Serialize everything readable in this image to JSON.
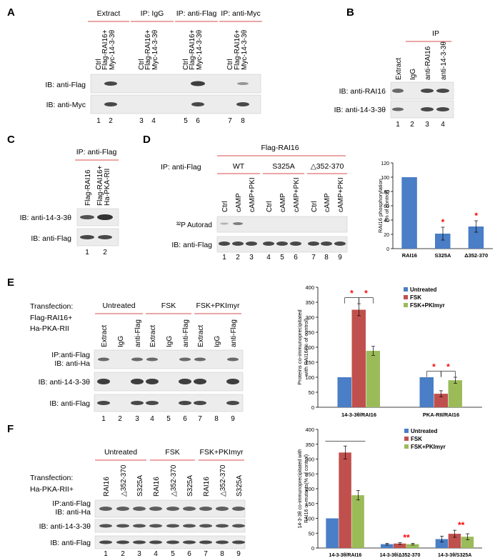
{
  "panels": {
    "A": {
      "letter": "A",
      "headers": [
        "Extract",
        "IP: IgG",
        "IP: anti-Flag",
        "IP: anti-Myc"
      ],
      "lane_labels": [
        "Ctrl",
        "Flag-RAI16+\nMyc-14-3-3θ",
        "Ctrl",
        "Flag-RAI16+\nMyc-14-3-3θ",
        "Ctrl",
        "Flag-RAI16+\nMyc-14-3-3θ",
        "Ctrl",
        "Flag-RAI16+\nMyc-14-3-3θ"
      ],
      "blots": [
        "IB: anti-Flag",
        "IB: anti-Myc"
      ],
      "lanes": [
        "1",
        "2",
        "3",
        "4",
        "5",
        "6",
        "7",
        "8"
      ]
    },
    "B": {
      "letter": "B",
      "header": "IP",
      "lane_labels": [
        "Extract",
        "IgG",
        "anti-RAI16",
        "anti-14-3-3θ"
      ],
      "blots": [
        "IB: anti-RAI16",
        "IB: anti-14-3-3θ"
      ],
      "lanes": [
        "1",
        "2",
        "3",
        "4"
      ]
    },
    "C": {
      "letter": "C",
      "header": "IP: anti-Flag",
      "lane_labels": [
        "Flag-RAI16",
        "Flag-RAI16+\nHa-PKA-RII"
      ],
      "blots": [
        "IB: anti-14-3-3θ",
        "IB: anti-Flag"
      ],
      "lanes": [
        "1",
        "2"
      ]
    },
    "D": {
      "letter": "D",
      "top_header": "Flag-RAI16",
      "ip_label": "IP: anti-Flag",
      "groups": [
        "WT",
        "S325A",
        "△352-370"
      ],
      "lane_labels": [
        "Ctrl",
        "cAMP",
        "cAMP+PKI",
        "Ctrl",
        "cAMP",
        "cAMP+PKI",
        "Ctrl",
        "cAMP",
        "cAMP+PKI"
      ],
      "blots": [
        "³²P Autorad",
        "IB: anti-Flag"
      ],
      "lanes": [
        "1",
        "2",
        "3",
        "4",
        "5",
        "6",
        "7",
        "8",
        "9"
      ]
    },
    "E": {
      "letter": "E",
      "transfection": [
        "Transfection:",
        "Flag-RAI16+",
        "Ha-PKA-RII"
      ],
      "groups": [
        "Untreated",
        "FSK",
        "FSK+PKImyr"
      ],
      "lane_labels": [
        "Extract",
        "IgG",
        "anti-Flag",
        "Extract",
        "IgG",
        "anti-Flag",
        "Extract",
        "IgG",
        "anti-Flag"
      ],
      "blots": [
        "IP:anti-Flag\nIB: anti-Ha",
        "IB: anti-14-3-3θ",
        "IB: anti-Flag"
      ],
      "lanes": [
        "1",
        "2",
        "3",
        "4",
        "5",
        "6",
        "7",
        "8",
        "9"
      ]
    },
    "F": {
      "letter": "F",
      "transfection": [
        "Transfection:",
        "Ha-PKA-RII+"
      ],
      "groups": [
        "Untreated",
        "FSK",
        "FSK+PKImyr"
      ],
      "lane_labels": [
        "RAI16",
        "△352-370",
        "S325A",
        "RAI16",
        "△352-370",
        "S325A",
        "RAI16",
        "△352-370",
        "S325A"
      ],
      "blots": [
        "IP:anti-Flag\nIB: anti-Ha",
        "IB: anti-14-3-3θ",
        "IB: anti-Flag"
      ],
      "lanes": [
        "1",
        "2",
        "3",
        "4",
        "5",
        "6",
        "7",
        "8",
        "9"
      ]
    }
  },
  "colors": {
    "blue": "#4a7ec6",
    "red": "#c0504d",
    "green": "#9bbb59",
    "sig": "#ff0000",
    "rule": "#e07070"
  },
  "chart_data": [
    {
      "id": "D",
      "type": "bar",
      "categories": [
        "RAI16",
        "S325A",
        "Δ352-370"
      ],
      "values": [
        100,
        21,
        31
      ],
      "errors": [
        0,
        9,
        8
      ],
      "ylabel": "RAI16 phosphorylation\n(% of control)",
      "ylim": [
        0,
        120
      ],
      "yticks": [
        0,
        20,
        40,
        60,
        80,
        100,
        120
      ],
      "significance": [
        "",
        "*",
        "*"
      ]
    },
    {
      "id": "E",
      "type": "bar",
      "categories": [
        "14-3-3θ/RAI16",
        "PKA-RII/RAI16"
      ],
      "series": [
        {
          "name": "Untreated",
          "values": [
            100,
            100
          ],
          "errors": [
            0,
            0
          ]
        },
        {
          "name": "FSK",
          "values": [
            325,
            45
          ],
          "errors": [
            20,
            10
          ]
        },
        {
          "name": "FSK+PKImyr",
          "values": [
            188,
            90
          ],
          "errors": [
            15,
            10
          ]
        }
      ],
      "ylabel": "Proteins co-immunoprecipitated\nwith RAI16(% of control)",
      "ylim": [
        0,
        400
      ],
      "yticks": [
        0,
        50,
        100,
        150,
        200,
        250,
        300,
        350,
        400
      ],
      "legend": "top-right",
      "significance_markers": [
        "*",
        "*",
        "*",
        "*"
      ]
    },
    {
      "id": "F",
      "type": "bar",
      "categories": [
        "14-3-3θ/RAI16",
        "14-3-3θ/Δ352-370",
        "14-3-3θ/S325A"
      ],
      "series": [
        {
          "name": "Untreated",
          "values": [
            100,
            13,
            30
          ],
          "errors": [
            0,
            3,
            10
          ]
        },
        {
          "name": "FSK",
          "values": [
            322,
            15,
            48
          ],
          "errors": [
            22,
            3,
            12
          ]
        },
        {
          "name": "FSK+PKImyr",
          "values": [
            178,
            13,
            38
          ],
          "errors": [
            16,
            3,
            10
          ]
        }
      ],
      "ylabel": "14-3-3θ co-immunoprecipitated with\nRAI16 or mutants(% of control)",
      "ylim": [
        0,
        400
      ],
      "yticks": [
        0,
        50,
        100,
        150,
        200,
        250,
        300,
        350,
        400
      ],
      "legend": "top-right",
      "significance": [
        "",
        "**",
        "**"
      ]
    }
  ]
}
